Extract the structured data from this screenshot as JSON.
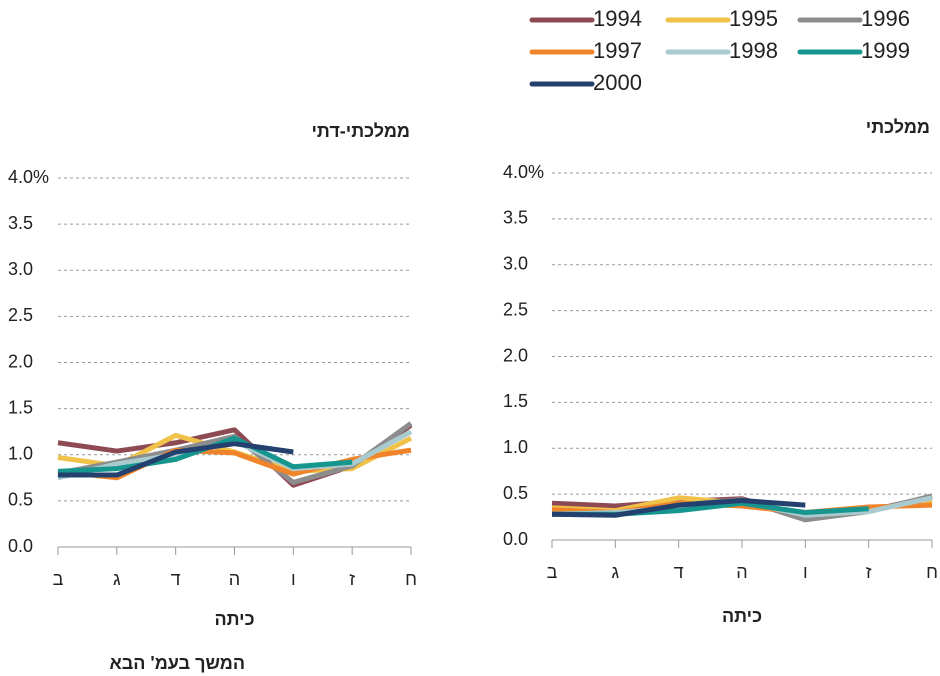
{
  "chart_data": [
    {
      "type": "line",
      "title": "ממלכתי-דתי",
      "xlabel": "כיתה",
      "categories": [
        "ב",
        "ג",
        "ד",
        "ה",
        "ו",
        "ז",
        "ח"
      ],
      "ylim": [
        0,
        4
      ],
      "yticks": [
        {
          "value": 0,
          "label": "0.0"
        },
        {
          "value": 0.5,
          "label": "0.5"
        },
        {
          "value": 1,
          "label": "1.0"
        },
        {
          "value": 1.5,
          "label": "1.5"
        },
        {
          "value": 2,
          "label": "2.0"
        },
        {
          "value": 2.5,
          "label": "2.5"
        },
        {
          "value": 3,
          "label": "3.0"
        },
        {
          "value": 3.5,
          "label": "3.5"
        },
        {
          "value": 4,
          "label": "4.0%"
        }
      ],
      "grid": true,
      "series": [
        {
          "name": "1994",
          "color": "#8e4a53",
          "values": [
            1.13,
            1.04,
            1.13,
            1.27,
            0.67,
            0.88,
            1.32
          ]
        },
        {
          "name": "1995",
          "color": "#f0c24a",
          "values": [
            0.97,
            0.88,
            1.21,
            1.03,
            0.82,
            0.85,
            1.18
          ]
        },
        {
          "name": "1996",
          "color": "#8c8c8c",
          "values": [
            0.8,
            0.92,
            1.05,
            1.2,
            0.7,
            0.88,
            1.34
          ]
        },
        {
          "name": "1997",
          "color": "#f0842a",
          "values": [
            0.82,
            0.75,
            1.05,
            1.02,
            0.79,
            0.95,
            1.05
          ]
        },
        {
          "name": "1998",
          "color": "#a9cbd0",
          "values": [
            0.75,
            0.9,
            1.0,
            1.15,
            0.85,
            0.9,
            1.25
          ]
        },
        {
          "name": "1999",
          "color": "#17968f",
          "values": [
            0.82,
            0.85,
            0.95,
            1.18,
            0.87,
            0.92,
            null
          ]
        },
        {
          "name": "2000",
          "color": "#23406f",
          "values": [
            0.78,
            0.78,
            1.03,
            1.12,
            1.03,
            null,
            null
          ]
        }
      ]
    },
    {
      "type": "line",
      "title": "ממלכתי",
      "xlabel": "כיתה",
      "categories": [
        "ב",
        "ג",
        "ד",
        "ה",
        "ו",
        "ז",
        "ח"
      ],
      "ylim": [
        0,
        4
      ],
      "yticks": [
        {
          "value": 0,
          "label": "0.0"
        },
        {
          "value": 0.5,
          "label": "0.5"
        },
        {
          "value": 1,
          "label": "1.0"
        },
        {
          "value": 1.5,
          "label": "1.5"
        },
        {
          "value": 2,
          "label": "2.0"
        },
        {
          "value": 2.5,
          "label": "2.5"
        },
        {
          "value": 3,
          "label": "3.0"
        },
        {
          "value": 3.5,
          "label": "3.5"
        },
        {
          "value": 4,
          "label": "4.0%"
        }
      ],
      "grid": true,
      "series": [
        {
          "name": "1994",
          "color": "#8e4a53",
          "values": [
            0.4,
            0.37,
            0.42,
            0.45,
            0.24,
            0.32,
            0.47
          ]
        },
        {
          "name": "1995",
          "color": "#f0c24a",
          "values": [
            0.35,
            0.32,
            0.46,
            0.4,
            0.28,
            0.33,
            0.43
          ]
        },
        {
          "name": "1996",
          "color": "#8c8c8c",
          "values": [
            0.3,
            0.3,
            0.38,
            0.44,
            0.22,
            0.31,
            0.48
          ]
        },
        {
          "name": "1997",
          "color": "#f0842a",
          "values": [
            0.33,
            0.3,
            0.4,
            0.37,
            0.3,
            0.36,
            0.38
          ]
        },
        {
          "name": "1998",
          "color": "#a9cbd0",
          "values": [
            0.28,
            0.3,
            0.35,
            0.42,
            0.27,
            0.31,
            0.46
          ]
        },
        {
          "name": "1999",
          "color": "#17968f",
          "values": [
            0.28,
            0.28,
            0.32,
            0.4,
            0.3,
            0.34,
            null
          ]
        },
        {
          "name": "2000",
          "color": "#23406f",
          "values": [
            0.28,
            0.27,
            0.38,
            0.43,
            0.38,
            null,
            null
          ]
        }
      ]
    }
  ],
  "footer": "המשך בעמ' הבא"
}
